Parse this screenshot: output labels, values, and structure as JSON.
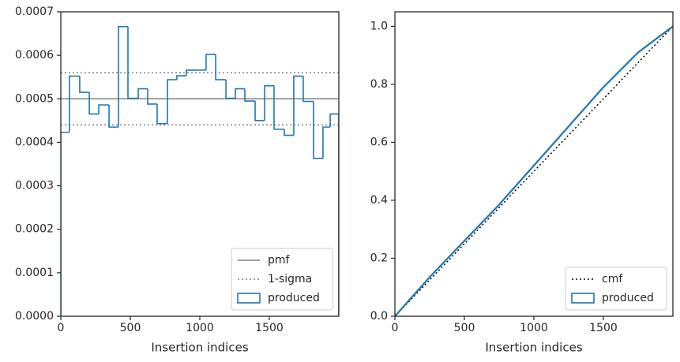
{
  "chart_data": [
    {
      "type": "histogram",
      "xlabel": "Insertion indices",
      "bins": [
        0,
        62,
        136,
        205,
        273,
        347,
        415,
        483,
        557,
        625,
        693,
        767,
        835,
        903,
        977,
        1045,
        1114,
        1188,
        1256,
        1324,
        1398,
        1466,
        1534,
        1608,
        1676,
        1744,
        1818,
        1886,
        1938,
        2000
      ],
      "series": [
        {
          "name": "produced",
          "color": "#1f77b4",
          "values": [
            0.000423,
            0.000552,
            0.000515,
            0.000465,
            0.000486,
            0.000435,
            0.000666,
            0.000501,
            0.000523,
            0.000488,
            0.000443,
            0.000544,
            0.000553,
            0.000566,
            0.000566,
            0.000602,
            0.000544,
            0.000501,
            0.000523,
            0.000495,
            0.00045,
            0.00053,
            0.00043,
            0.000416,
            0.000552,
            0.000494,
            0.000363,
            0.000435,
            0.000465
          ]
        }
      ],
      "hlines": [
        {
          "name": "pmf",
          "values": [
            0.0005
          ],
          "color": "#808080",
          "style": "solid"
        },
        {
          "name": "1-sigma",
          "values": [
            0.00044,
            0.00056
          ],
          "color": "#808080",
          "style": "dotted"
        }
      ],
      "xlim": [
        0,
        2000
      ],
      "xticks": [
        0,
        500,
        1000,
        1500
      ],
      "ylim": [
        0,
        0.0007
      ],
      "yticks": [
        {
          "value": 0,
          "label": "0.0000"
        },
        {
          "value": 0.0001,
          "label": "0.0001"
        },
        {
          "value": 0.0002,
          "label": "0.0002"
        },
        {
          "value": 0.0003,
          "label": "0.0003"
        },
        {
          "value": 0.0004,
          "label": "0.0004"
        },
        {
          "value": 0.0005,
          "label": "0.0005"
        },
        {
          "value": 0.0006,
          "label": "0.0006"
        },
        {
          "value": 0.0007,
          "label": "0.0007"
        }
      ],
      "legend": "lower right"
    },
    {
      "type": "line",
      "xlabel": "Insertion indices",
      "x": [
        0,
        250,
        500,
        750,
        1000,
        1250,
        1500,
        1750,
        2000
      ],
      "series": [
        {
          "name": "cmf",
          "color": "#000000",
          "style": "dotted",
          "values": [
            0,
            0.125,
            0.25,
            0.375,
            0.5,
            0.625,
            0.75,
            0.875,
            1.0
          ]
        },
        {
          "name": "produced",
          "color": "#1f77b4",
          "style": "step",
          "values": [
            0,
            0.135,
            0.26,
            0.385,
            0.52,
            0.655,
            0.79,
            0.91,
            1.0
          ]
        }
      ],
      "xlim": [
        0,
        2000
      ],
      "xticks": [
        0,
        500,
        1000,
        1500
      ],
      "ylim": [
        0,
        1.05
      ],
      "yticks": [
        {
          "value": 0,
          "label": "0.0"
        },
        {
          "value": 0.2,
          "label": "0.2"
        },
        {
          "value": 0.4,
          "label": "0.4"
        },
        {
          "value": 0.6,
          "label": "0.6"
        },
        {
          "value": 0.8,
          "label": "0.8"
        },
        {
          "value": 1.0,
          "label": "1.0"
        }
      ],
      "legend": "lower right"
    }
  ]
}
